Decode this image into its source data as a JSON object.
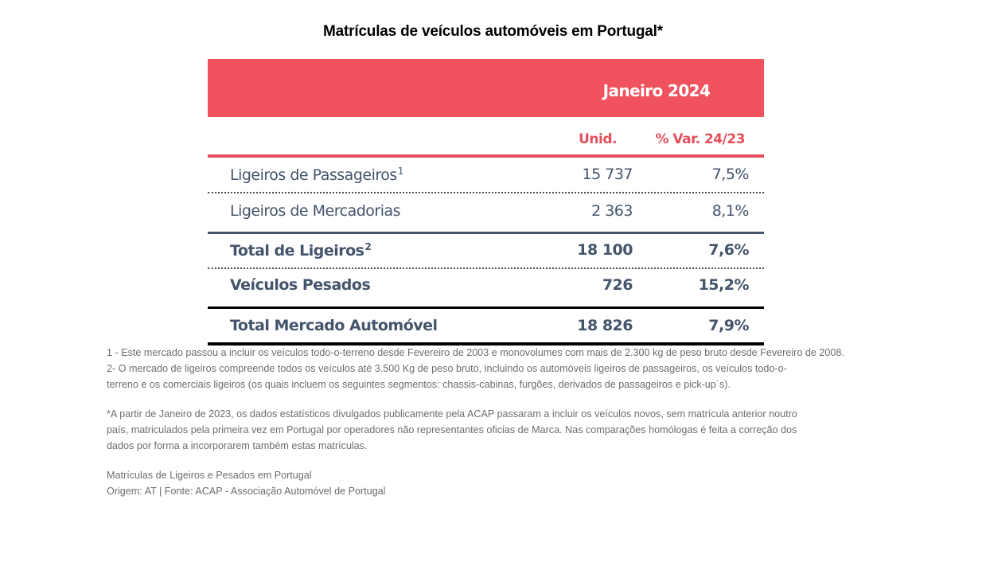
{
  "title": "Matrículas de veículos automóveis em Portugal*",
  "table": {
    "period": "Janeiro 2024",
    "columns": {
      "units": "Unid.",
      "variation": "% Var. 24/23"
    },
    "rows": [
      {
        "label": "Ligeiros de Passageiros",
        "sup": "1",
        "units": "15 737",
        "variation": "7,5%",
        "bold": false
      },
      {
        "label": "Ligeiros de Mercadorias",
        "sup": "",
        "units": "2 363",
        "variation": "8,1%",
        "bold": false
      },
      {
        "label": "Total de Ligeiros",
        "sup": "2",
        "units": "18 100",
        "variation": "7,6%",
        "bold": true
      },
      {
        "label": "Veículos Pesados",
        "sup": "",
        "units": "726",
        "variation": "15,2%",
        "bold": true
      },
      {
        "label": "Total Mercado Automóvel",
        "sup": "",
        "units": "18 826",
        "variation": "7,9%",
        "bold": true
      }
    ]
  },
  "footnotes": {
    "note1": "1 - Este mercado passou a incluir os veículos todo-o-terreno desde Fevereiro de 2003 e monovolumes com mais de 2.300 kg de peso bruto desde Fevereiro de 2008.",
    "note2_line1": "2- O mercado de ligeiros compreende todos os veículos até 3.500 Kg de peso bruto, incluindo os automóveis ligeiros de passageiros, os veículos todo-o-",
    "note2_line2": "terreno e os comerciais ligeiros (os quais incluem os seguintes segmentos: chassis-cabinas, furgões, derivados de passageiros e pick-up´s).",
    "asterisk_line1": "*A partir de Janeiro de 2023, os dados estatísticos divulgados publicamente pela ACAP passaram a incluir os veículos novos, sem matrícula anterior noutro",
    "asterisk_line2": "país, matriculados pela primeira vez em Portugal por operadores não representantes oficias de Marca. Nas comparações homólogas é feita a correção dos",
    "asterisk_line3": "dados por forma a incorporarem também estas matrículas."
  },
  "source": {
    "caption": "Matrículas de Ligeiros e Pesados em Portugal",
    "origin": "Origem: AT | Fonte: ACAP - Associação Automóvel de Portugal"
  },
  "colors": {
    "accent_red": "#F0535F",
    "text_slate": "#44546A",
    "note_grey": "#6d6d6d"
  }
}
